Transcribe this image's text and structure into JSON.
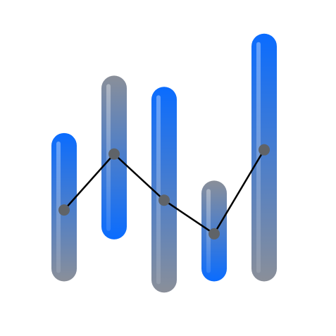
{
  "chart_data": {
    "type": "bar",
    "subtype": "floating-range-with-line",
    "title": "",
    "xlabel": "",
    "ylabel": "",
    "categories": [
      "",
      "",
      "",
      "",
      ""
    ],
    "ylim": [
      0,
      480
    ],
    "grid": false,
    "legend": "none",
    "axes_visible": false,
    "ranges": [
      {
        "low": 78,
        "high": 290,
        "top_color": "#0a6cff",
        "bottom_color": "#8a8f99"
      },
      {
        "low": 138,
        "high": 372,
        "top_color": "#8a8f99",
        "bottom_color": "#0a6cff"
      },
      {
        "low": 62,
        "high": 356,
        "top_color": "#0a6cff",
        "bottom_color": "#8a8f99"
      },
      {
        "low": 78,
        "high": 222,
        "top_color": "#8a8f99",
        "bottom_color": "#0a6cff"
      },
      {
        "low": 78,
        "high": 432,
        "top_color": "#0a6cff",
        "bottom_color": "#8a8f99"
      }
    ],
    "line_values": [
      180,
      260,
      194,
      146,
      266
    ],
    "colors": {
      "blue": "#0a6cff",
      "gray": "#8a8f99",
      "line": "#000000",
      "marker": "#5f6368"
    }
  }
}
